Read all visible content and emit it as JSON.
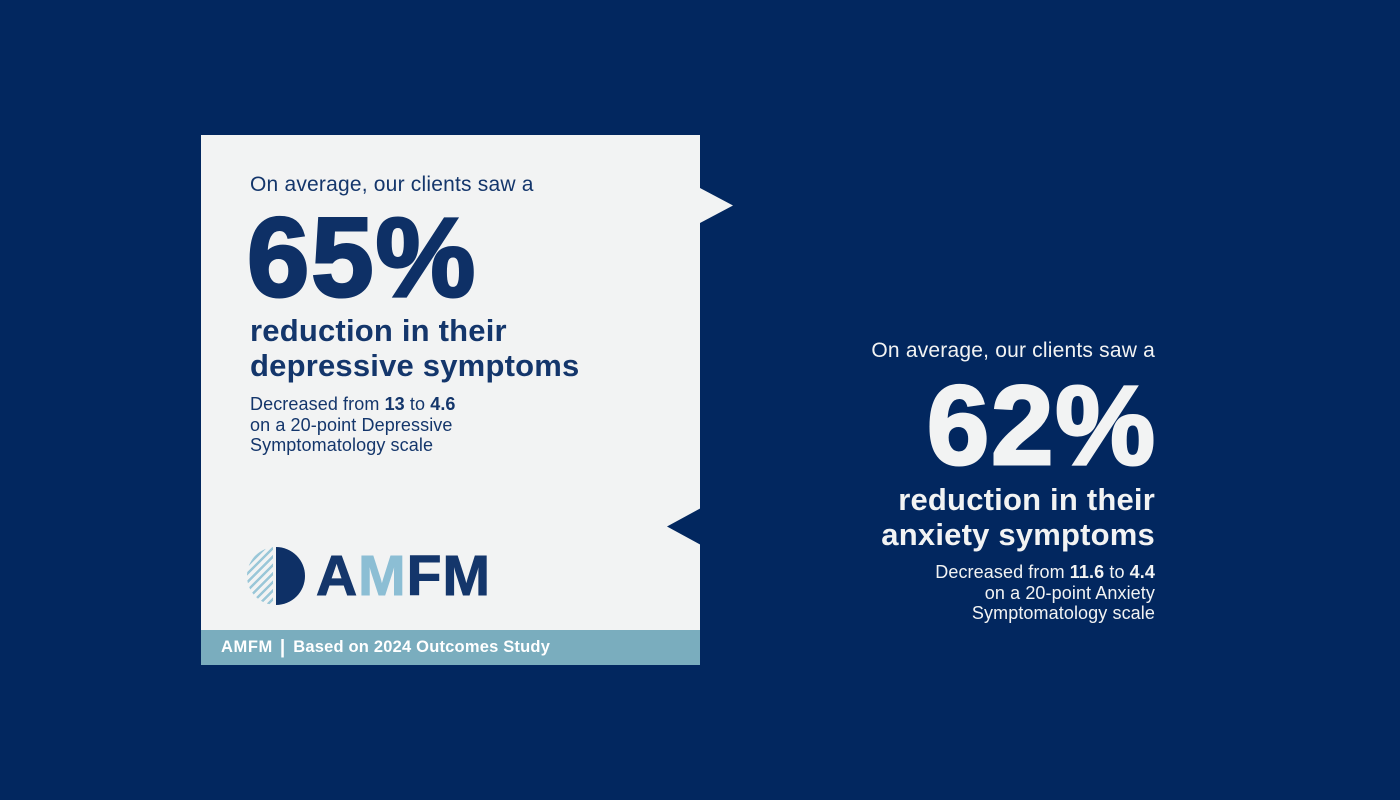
{
  "depression_card": {
    "eyebrow": "On average, our clients saw a",
    "stat": "65%",
    "headline_line1": "reduction in their",
    "headline_line2": "depressive symptoms",
    "detail": {
      "prefix": "Decreased from ",
      "from_value": "13",
      "mid": " to ",
      "to_value": "4.6",
      "line2": "on a 20-point Depressive",
      "line3": "Symptomatology scale"
    }
  },
  "anxiety_block": {
    "eyebrow": "On average, our clients saw a",
    "stat": "62%",
    "headline_line1": "reduction in their",
    "headline_line2": "anxiety symptoms",
    "detail": {
      "prefix": "Decreased from ",
      "from_value": "11.6",
      "mid": " to ",
      "to_value": "4.4",
      "line2": "on a 20-point Anxiety",
      "line3": "Symptomatology scale"
    }
  },
  "logo": {
    "name": "AMFM",
    "letter_a": "A",
    "letter_m1": "M",
    "letter_f": "F",
    "letter_m2": "M"
  },
  "footer": {
    "brand": "AMFM",
    "separator": "|",
    "text": "Based on 2024 Outcomes Study"
  },
  "colors": {
    "background_navy": "#02275f",
    "card_background": "#f2f3f3",
    "text_navy": "#14366b",
    "stat_navy": "#0e3066",
    "footer_bar_blue": "#7aadbe",
    "logo_light_blue": "#8cbed4",
    "right_text_offwhite": "#f2f3f3"
  }
}
